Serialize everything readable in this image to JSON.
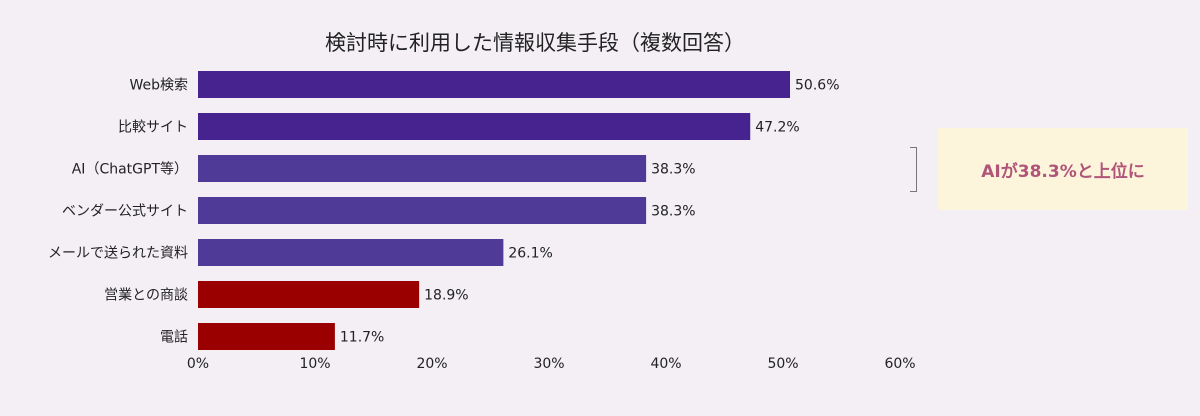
{
  "chart_data": {
    "type": "bar",
    "orientation": "horizontal",
    "title": "検討時に利用した情報収集手段（複数回答）",
    "categories": [
      "Web検索",
      "比較サイト",
      "AI（ChatGPT等）",
      "ベンダー公式サイト",
      "メールで送られた資料",
      "営業との商談",
      "電話"
    ],
    "values": [
      50.6,
      47.2,
      38.3,
      38.3,
      26.1,
      18.9,
      11.7
    ],
    "value_labels": [
      "50.6%",
      "47.2%",
      "38.3%",
      "38.3%",
      "26.1%",
      "18.9%",
      "11.7%"
    ],
    "bar_colors": [
      "#46238f",
      "#46238f",
      "#4f3a97",
      "#4f3a97",
      "#4f3a97",
      "#9a0000",
      "#9a0000"
    ],
    "xlim": [
      0,
      60
    ],
    "xticks": [
      "0%",
      "10%",
      "20%",
      "30%",
      "40%",
      "50%",
      "60%"
    ],
    "grid": false,
    "legend": "none"
  },
  "callout": {
    "text": "AIが38.3%と上位に",
    "color": "#b05578",
    "background": "#fdf4dc"
  }
}
